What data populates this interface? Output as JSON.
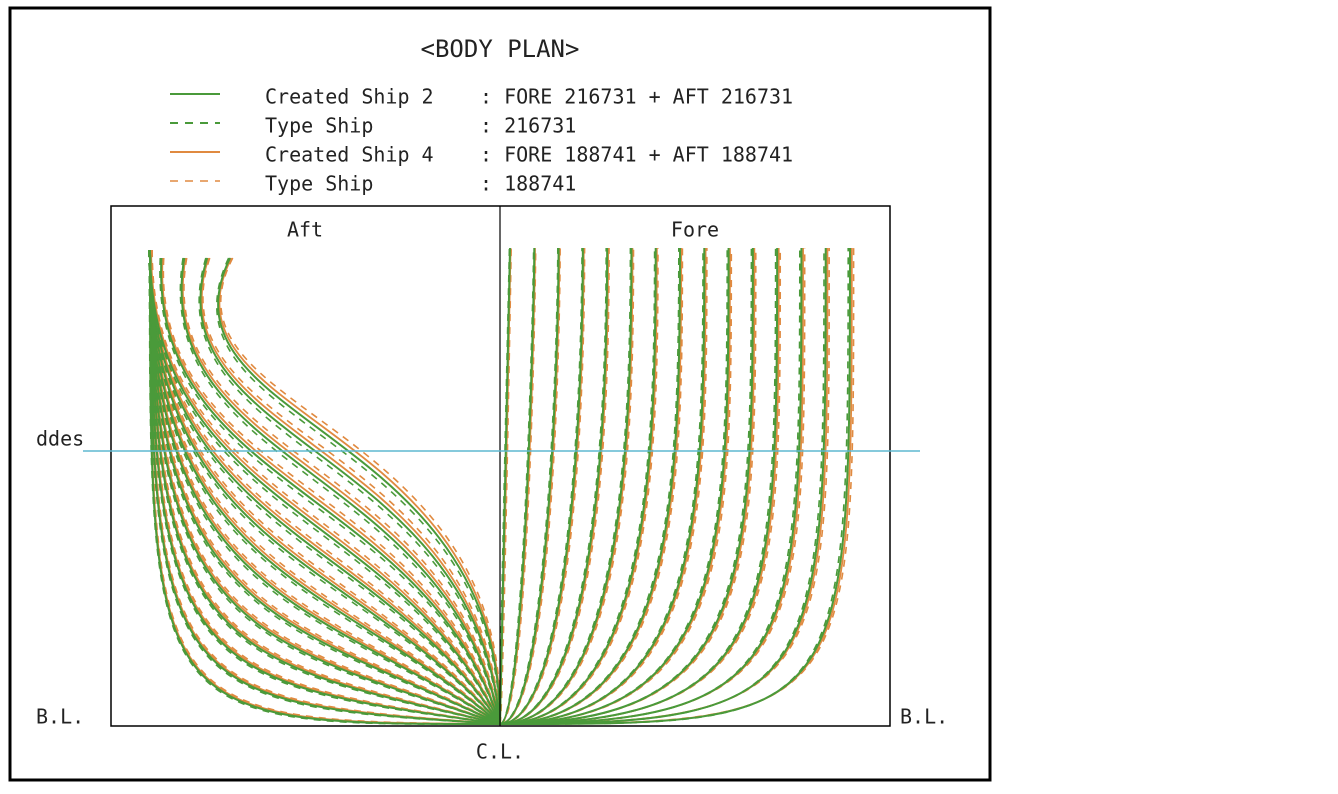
{
  "title": "<BODY PLAN>",
  "legend": [
    {
      "name": "Created Ship 2",
      "desc": ": FORE 216731 + AFT 216731"
    },
    {
      "name": "Type Ship",
      "desc": ": 216731"
    },
    {
      "name": "Created Ship 4",
      "desc": ": FORE 188741 + AFT 188741"
    },
    {
      "name": "Type Ship",
      "desc": ": 188741"
    }
  ],
  "panels": {
    "aft": "Aft",
    "fore": "Fore"
  },
  "labels": {
    "draft": "ddes",
    "baseline_left": "B.L.",
    "baseline_right": "B.L.",
    "centerline": "C.L."
  }
}
